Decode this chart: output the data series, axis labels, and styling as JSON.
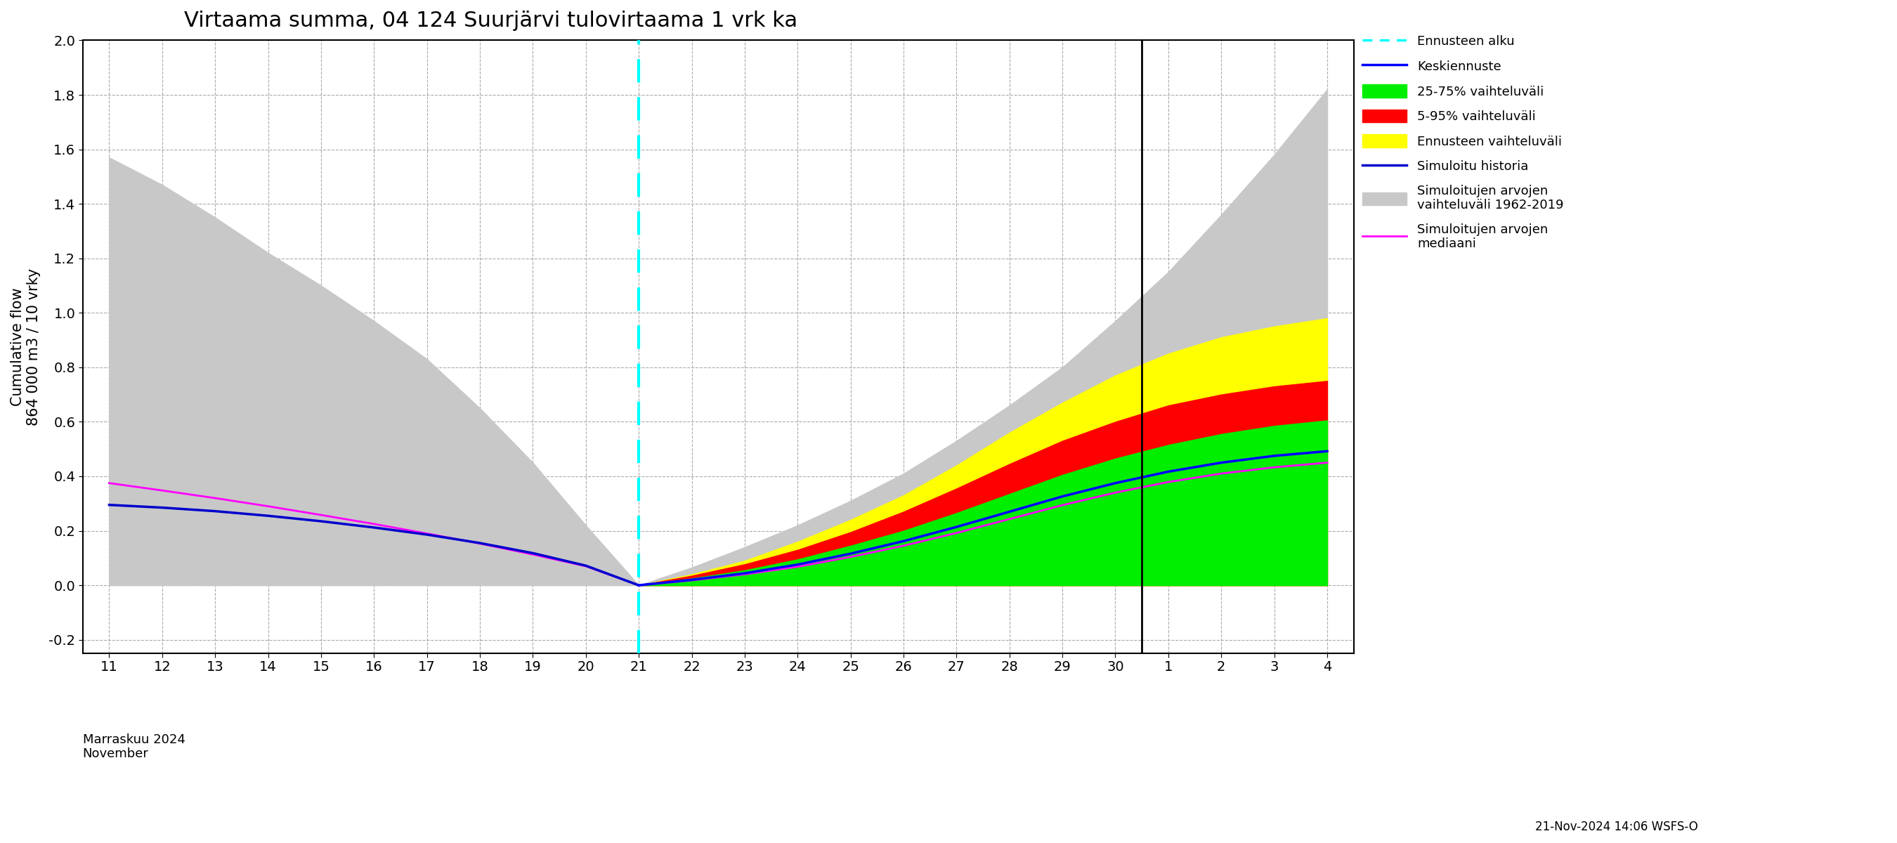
{
  "title": "Virtaama summa, 04 124 Suurjärvi tulovirtaama 1 vrk ka",
  "ylabel_top": "864 000 m3 / 10 vrky",
  "ylabel_bottom": "Cumulative flow",
  "xlabel_line1": "Marraskuu 2024",
  "xlabel_line2": "November",
  "footnote": "21-Nov-2024 14:06 WSFS-O",
  "ylim": [
    -0.25,
    2.0
  ],
  "background_color": "#ffffff",
  "grid_color": "#aaaaaa",
  "tick_label_size": 14,
  "gray_hist_upper": [
    1.57,
    1.47,
    1.35,
    1.22,
    1.1,
    0.97,
    0.83,
    0.65,
    0.45,
    0.22,
    0.0
  ],
  "gray_hist_lower": [
    0.0,
    0.0,
    0.0,
    0.0,
    0.0,
    0.0,
    0.0,
    0.0,
    0.0,
    0.0,
    0.0
  ],
  "gray_fore_upper": [
    0.0,
    0.065,
    0.14,
    0.22,
    0.31,
    0.41,
    0.53,
    0.66,
    0.8,
    0.97,
    1.15,
    1.36,
    1.58,
    1.82
  ],
  "gray_fore_lower": [
    0.0,
    0.0,
    0.0,
    0.0,
    0.0,
    0.0,
    0.0,
    0.0,
    0.0,
    0.0,
    0.0,
    0.0,
    0.0,
    0.0
  ],
  "yellow_upper": [
    0.0,
    0.04,
    0.09,
    0.16,
    0.24,
    0.33,
    0.44,
    0.56,
    0.67,
    0.77,
    0.85,
    0.91,
    0.95,
    0.98
  ],
  "yellow_lower": [
    0.0,
    0.0,
    0.0,
    0.0,
    0.0,
    0.0,
    0.0,
    0.0,
    0.0,
    0.0,
    0.0,
    0.0,
    0.0,
    0.0
  ],
  "red_upper": [
    0.0,
    0.035,
    0.077,
    0.13,
    0.195,
    0.27,
    0.355,
    0.445,
    0.53,
    0.6,
    0.66,
    0.7,
    0.73,
    0.75
  ],
  "red_lower": [
    0.0,
    0.0,
    0.0,
    0.0,
    0.0,
    0.0,
    0.0,
    0.0,
    0.0,
    0.0,
    0.0,
    0.0,
    0.0,
    0.0
  ],
  "green_upper": [
    0.0,
    0.025,
    0.055,
    0.095,
    0.145,
    0.2,
    0.265,
    0.335,
    0.405,
    0.465,
    0.515,
    0.555,
    0.585,
    0.605
  ],
  "green_lower": [
    0.0,
    0.0,
    0.0,
    0.0,
    0.0,
    0.0,
    0.0,
    0.0,
    0.0,
    0.0,
    0.0,
    0.0,
    0.0,
    0.0
  ],
  "keskiennuste_fore": [
    0.0,
    0.02,
    0.044,
    0.076,
    0.116,
    0.162,
    0.214,
    0.27,
    0.326,
    0.375,
    0.417,
    0.45,
    0.475,
    0.492
  ],
  "sim_historia_hist": [
    0.295,
    0.285,
    0.272,
    0.255,
    0.235,
    0.212,
    0.186,
    0.155,
    0.118,
    0.072,
    0.0
  ],
  "sim_median_hist": [
    0.375,
    0.348,
    0.32,
    0.29,
    0.258,
    0.225,
    0.19,
    0.153,
    0.113,
    0.07,
    0.0
  ],
  "sim_median_fore": [
    0.0,
    0.018,
    0.04,
    0.068,
    0.104,
    0.145,
    0.192,
    0.243,
    0.294,
    0.34,
    0.379,
    0.41,
    0.433,
    0.45
  ]
}
